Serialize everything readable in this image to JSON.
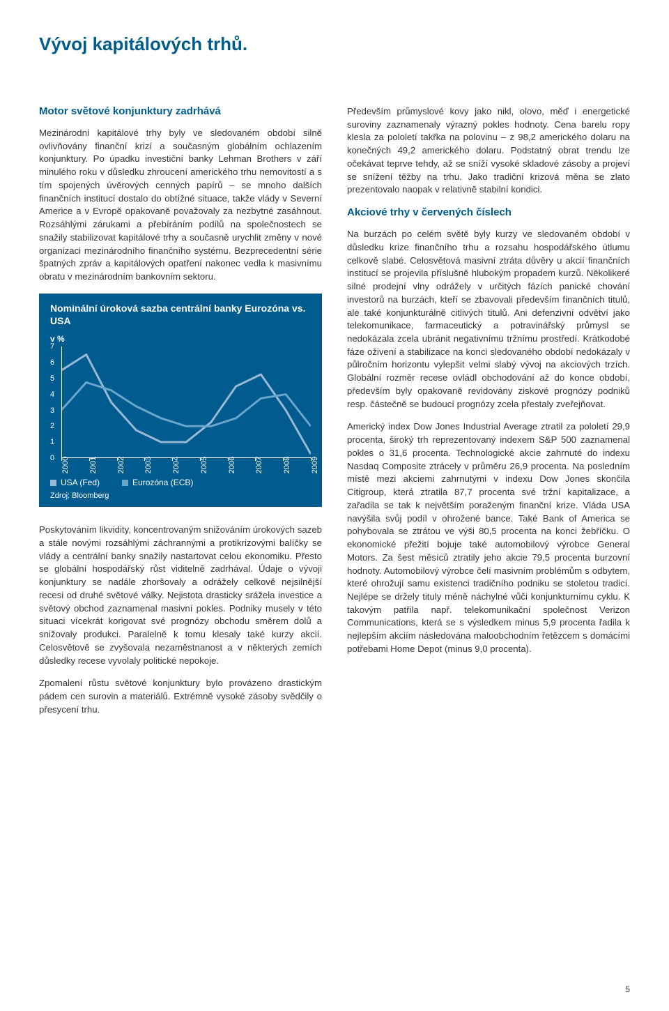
{
  "page": {
    "title": "Vývoj kapitálových trhů.",
    "number": "5"
  },
  "left": {
    "heading": "Motor světové konjunktury zadrhává",
    "p1": "Mezinárodní kapitálové trhy byly ve sledovaném období silně ovlivňovány finanční krizí a současným globálním ochlazením konjunktury. Po úpadku investiční banky Lehman Brothers v září minulého roku v důsledku zhroucení amerického trhu nemovitostí a s tím spojených úvěrových cenných papírů – se mnoho dalších finančních institucí dostalo do obtížné situace, takže vlády v Severní Americe a v Evropě opakovaně považovaly za nezbytné zasáhnout. Rozsáhlými zárukami a přebíráním podílů na společnostech se snažily stabilizovat kapitálové trhy a současně urychlit změny v nové organizaci mezinárodního finančního systému. Bezprecedentní série špatných zpráv a kapitálových opatření nakonec vedla k masivnímu obratu v mezinárodním bankovním sektoru.",
    "p2": "Poskytováním likvidity, koncentrovaným snižováním úrokových sazeb a stále novými rozsáhlými záchrannými a protikrizovými balíčky se vlády a centrální banky snažily nastartovat celou ekonomiku. Přesto se globální hospodářský růst viditelně zadrhával. Údaje o vývoji konjunktury se nadále zhoršovaly a odrážely celkově nejsilnější recesi od druhé světové války. Nejistota drasticky srážela investice a světový obchod zaznamenal masivní pokles. Podniky musely v této situaci vícekrát korigovat své prognózy obchodu směrem dolů a snižovaly produkci. Paralelně k tomu klesaly také kurzy akcií. Celosvětově se zvyšovala nezaměstnanost a v některých zemích důsledky recese vyvolaly politické nepokoje.",
    "p3": "Zpomalení růstu světové konjunktury bylo provázeno drastickým pádem cen surovin a materiálů. Extrémně vysoké zásoby svědčily o přesycení trhu."
  },
  "right": {
    "p1": "Především průmyslové kovy jako nikl, olovo, měď i energetické suroviny zaznamenaly výrazný pokles hodnoty. Cena barelu ropy klesla za pololetí takřka na polovinu – z 98,2 amerického dolaru na konečných 49,2 amerického dolaru. Podstatný obrat trendu lze očekávat teprve tehdy, až se sníží vysoké skladové zásoby a projeví se snížení těžby na trhu. Jako tradiční krizová měna se zlato prezentovalo naopak v relativně stabilní kondici.",
    "heading": "Akciové trhy v červených číslech",
    "p2": "Na burzách po celém světě byly kurzy ve sledovaném období v důsledku krize finančního trhu a rozsahu hospodářského útlumu celkově slabé. Celosvětová masivní ztráta důvěry u akcií finančních institucí se projevila příslušně hlubokým propadem kurzů. Několikeré silné prodejní vlny odrážely v určitých fázích panické chování investorů na burzách, kteří se zbavovali především finančních titulů, ale také konjunkturálně citlivých titulů. Ani defenzivní odvětví jako telekomunikace, farmaceutický a potravinářský průmysl se nedokázala zcela ubránit negativnímu tržnímu prostředí. Krátkodobé fáze oživení a stabilizace na konci sledovaného období nedokázaly v půlročním horizontu vylepšit velmi slabý vývoj na akciových trzích. Globální rozměr recese ovládl obchodování až do konce období, především byly opakovaně revidovány ziskové prognózy podniků resp. částečně se budoucí prognózy zcela přestaly zveřejňovat.",
    "p3": "Americký index Dow Jones Industrial Average ztratil za pololetí 29,9 procenta, široký trh reprezentovaný indexem S&P 500 zaznamenal pokles o 31,6 procenta. Technologické akcie zahrnuté do indexu Nasdaq Composite ztrácely v průměru 26,9 procenta. Na posledním místě mezi akciemi zahrnutými v indexu Dow Jones skončila Citigroup, která ztratila 87,7 procenta své tržní kapitalizace, a zařadila se tak k největším poraženým finanční krize. Vláda USA navýšila svůj podíl v ohrožené bance. Také Bank of America se pohybovala se ztrátou ve výši 80,5 procenta na konci žebříčku. O ekonomické přežití bojuje také automobilový výrobce General Motors. Za šest měsíců ztratily jeho akcie 79,5 procenta burzovní hodnoty. Automobilový výrobce čelí masivním problémům s odbytem, které ohrožují samu existenci tradičního podniku se stoletou tradicí. Nejlépe se držely tituly méně náchylné vůči konjunkturnímu cyklu. K takovým patřila např. telekomunikační společnost Verizon Communications, která se s výsledkem minus 5,9 procenta řadila k nejlepším akciím následována maloobchodním řetězcem s domácími potřebami Home Depot (minus 9,0 procenta)."
  },
  "chart": {
    "title": "Nominální úroková sazba centrální banky Eurozóna vs. USA",
    "y_unit": "v %",
    "y_ticks": [
      "0",
      "1",
      "2",
      "3",
      "4",
      "5",
      "6",
      "7"
    ],
    "ylim": [
      0,
      7
    ],
    "x_labels": [
      "2000",
      "2001",
      "2002",
      "2003",
      "2004",
      "2005",
      "2006",
      "2007",
      "2008",
      "2009"
    ],
    "series": [
      {
        "name": "USA (Fed)",
        "color": "#99b8d6",
        "values": [
          5.5,
          6.5,
          3.5,
          1.75,
          1.0,
          1.0,
          2.25,
          4.5,
          5.25,
          3.0,
          0.25
        ]
      },
      {
        "name": "Eurozóna (ECB)",
        "color": "#6aa5cc",
        "values": [
          3.0,
          4.75,
          4.25,
          3.25,
          2.5,
          2.0,
          2.0,
          2.5,
          3.75,
          4.0,
          2.0
        ]
      }
    ],
    "background_color": "#005b8f",
    "axis_color": "#ffffff",
    "line_width": 3,
    "source": "Zdroj: Bloomberg"
  }
}
